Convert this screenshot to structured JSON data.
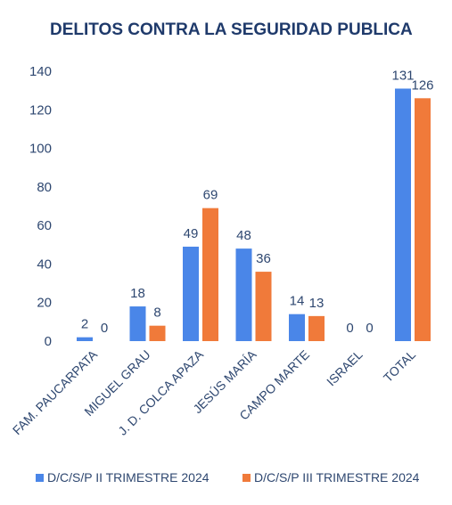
{
  "chart_data": {
    "type": "bar",
    "title": "DELITOS CONTRA LA SEGURIDAD PUBLICA",
    "xlabel": "",
    "ylabel": "",
    "ylim": [
      0,
      140
    ],
    "yticks": [
      0,
      20,
      40,
      60,
      80,
      100,
      120,
      140
    ],
    "grid": false,
    "legend_position": "bottom",
    "categories": [
      "FAM. PAUCARPATA",
      "MIGUEL GRAU",
      "J. D. COLCA APAZA",
      "JESÚS MARÍA",
      "CAMPO MARTE",
      "ISRAEL",
      "TOTAL"
    ],
    "series": [
      {
        "name": "D/C/S/P II TRIMESTRE 2024",
        "color": "#4a86e8",
        "values": [
          2,
          18,
          49,
          48,
          14,
          0,
          131
        ]
      },
      {
        "name": "D/C/S/P III TRIMESTRE 2024",
        "color": "#f07a3a",
        "values": [
          0,
          8,
          69,
          36,
          13,
          0,
          126
        ]
      }
    ]
  }
}
